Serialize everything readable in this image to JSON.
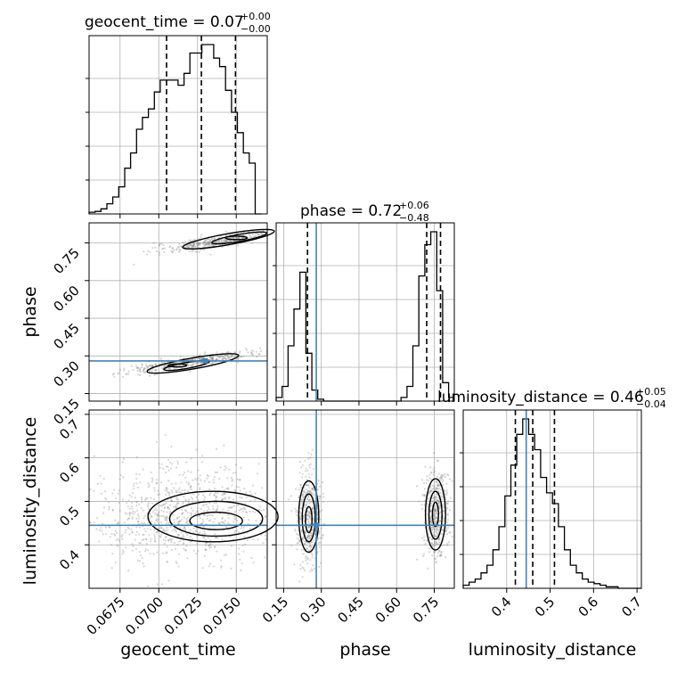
{
  "chart_data": {
    "type": "corner",
    "parameters": [
      {
        "key": "geocent_time",
        "label": "geocent_time",
        "range": [
          0.0655,
          0.077
        ],
        "ticks": [
          "0.0675",
          "0.0700",
          "0.0725",
          "0.0750"
        ],
        "tick_values": [
          0.0675,
          0.07,
          0.0725,
          0.075
        ],
        "title_main": "geocent_time = 0.07",
        "title_plus": "+0.00",
        "title_minus": "−0.00",
        "quantiles": [
          0.0705,
          0.07275,
          0.07495
        ],
        "truth": null
      },
      {
        "key": "phase",
        "label": "phase",
        "range": [
          0.12,
          0.83
        ],
        "ticks": [
          "0.15",
          "0.30",
          "0.45",
          "0.60",
          "0.75"
        ],
        "tick_values": [
          0.15,
          0.3,
          0.45,
          0.6,
          0.75
        ],
        "title_main": "phase = 0.72",
        "title_plus": "+0.06",
        "title_minus": "−0.48",
        "quantiles": [
          0.245,
          0.72,
          0.775
        ],
        "truth": 0.28
      },
      {
        "key": "luminosity_distance",
        "label": "luminosity_distance",
        "range": [
          0.3,
          0.71
        ],
        "ticks": [
          "0.4",
          "0.5",
          "0.6",
          "0.7"
        ],
        "tick_values": [
          0.4,
          0.5,
          0.6,
          0.7
        ],
        "title_main": "luminosity_distance = 0.46",
        "title_plus": "+0.05",
        "title_minus": "−0.04",
        "quantiles": [
          0.42,
          0.46,
          0.51
        ],
        "truth": 0.445
      }
    ],
    "histograms": {
      "geocent_time": {
        "edges_start": 0.0655,
        "bin_width": 0.000383,
        "counts": [
          1,
          1.5,
          3,
          6,
          10,
          16,
          27,
          36,
          50,
          57,
          62,
          72,
          79,
          79,
          79,
          76,
          83,
          95,
          95,
          100,
          100,
          92,
          87,
          73,
          60,
          48,
          36,
          30,
          0
        ]
      },
      "phase": {
        "edges_start": 0.12,
        "bin_width": 0.0237,
        "counts": [
          2,
          8,
          30,
          50,
          70,
          26,
          6,
          1,
          0,
          0,
          0,
          0,
          0,
          0,
          0,
          0,
          0,
          0,
          0,
          0,
          0,
          2,
          8,
          30,
          68,
          85,
          92,
          60,
          10,
          2
        ]
      },
      "luminosity_distance": {
        "edges_start": 0.3,
        "bin_width": 0.0137,
        "counts": [
          2,
          4,
          6,
          10,
          15,
          25,
          40,
          60,
          80,
          100,
          110,
          100,
          90,
          72,
          62,
          55,
          40,
          25,
          15,
          10,
          6,
          4,
          3,
          2,
          1,
          1,
          0,
          0,
          0,
          0
        ]
      }
    },
    "scatter_pairs": [
      {
        "x": "geocent_time",
        "y": "phase",
        "note": "two bands near phase 0.25-0.32 and 0.70-0.80"
      },
      {
        "x": "geocent_time",
        "y": "luminosity_distance"
      },
      {
        "x": "phase",
        "y": "luminosity_distance"
      }
    ],
    "grid": true,
    "colors": {
      "truth": "#4682b4",
      "contour": "#000000",
      "points": "#808080"
    }
  }
}
